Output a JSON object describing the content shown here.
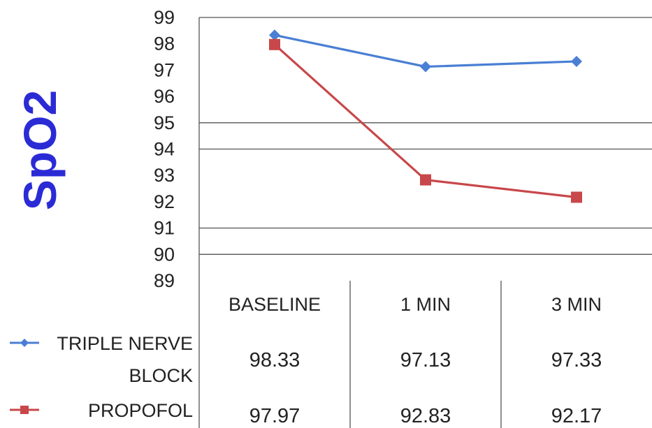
{
  "chart_data": {
    "type": "line",
    "ylabel": "SpO2",
    "ylim": [
      89,
      99
    ],
    "yticks": [
      "89",
      "90",
      "91",
      "92",
      "93",
      "94",
      "95",
      "96",
      "97",
      "98",
      "99"
    ],
    "categories": [
      "BASELINE",
      "1 MIN",
      "3 MIN"
    ],
    "series": [
      {
        "name": "TRIPLE NERVE BLOCK",
        "name_lines": [
          "TRIPLE NERVE",
          "BLOCK"
        ],
        "values": [
          98.33,
          97.13,
          97.33
        ],
        "labels": [
          "98.33",
          "97.13",
          "97.33"
        ],
        "color": "#4a7fd4",
        "marker": "diamond"
      },
      {
        "name": "PROPOFOL",
        "name_lines": [
          "PROPOFOL"
        ],
        "values": [
          97.97,
          92.83,
          92.17
        ],
        "labels": [
          "97.97",
          "92.83",
          "92.17"
        ],
        "color": "#c8474a",
        "marker": "square"
      }
    ],
    "gridlines_at": [
      90,
      91,
      94,
      95,
      99
    ],
    "legend": "data-table-left"
  }
}
